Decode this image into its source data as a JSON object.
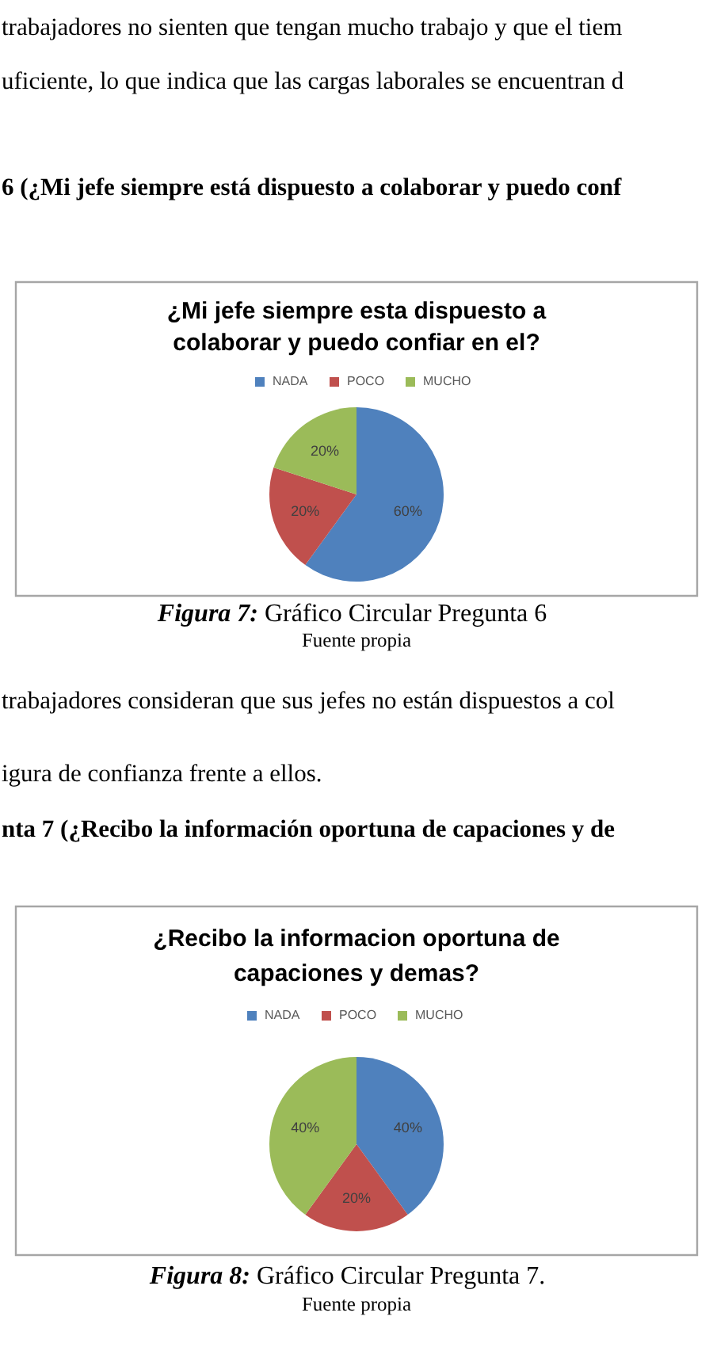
{
  "chart_data": [
    {
      "type": "pie",
      "title": "¿Mi jefe siempre esta dispuesto a colaborar y puedo confiar en el?",
      "categories": [
        "NADA",
        "POCO",
        "MUCHO"
      ],
      "values": [
        60,
        20,
        20
      ],
      "colors": [
        "#4f81bd",
        "#c0504d",
        "#9bbb59"
      ],
      "value_labels": [
        "60%",
        "20%",
        "20%"
      ],
      "legend": "top",
      "annotations": [
        "trabajadores no sienten que tengan mucho trabajo y que el tiem",
        "uficiente, lo que indica que las cargas laborales se encuentran d",
        "6 (¿Mi jefe siempre está dispuesto a colaborar y puedo conf",
        "Figura 7: Gráfico Circular Pregunta 6",
        "Fuente propia"
      ]
    },
    {
      "type": "pie",
      "title": "¿Recibo la informacion oportuna de capaciones y demas?",
      "categories": [
        "NADA",
        "POCO",
        "MUCHO"
      ],
      "values": [
        40,
        20,
        40
      ],
      "colors": [
        "#4f81bd",
        "#c0504d",
        "#9bbb59"
      ],
      "value_labels": [
        "40%",
        "20%",
        "40%"
      ],
      "legend": "top",
      "annotations": [
        "trabajadores consideran que sus jefes no están dispuestos a col",
        "igura de confianza frente a ellos.",
        "nta 7 (¿Recibo la información oportuna de capaciones y de",
        "Figura 8: Gráfico Circular Pregunta 7.",
        "Fuente propia"
      ]
    }
  ]
}
